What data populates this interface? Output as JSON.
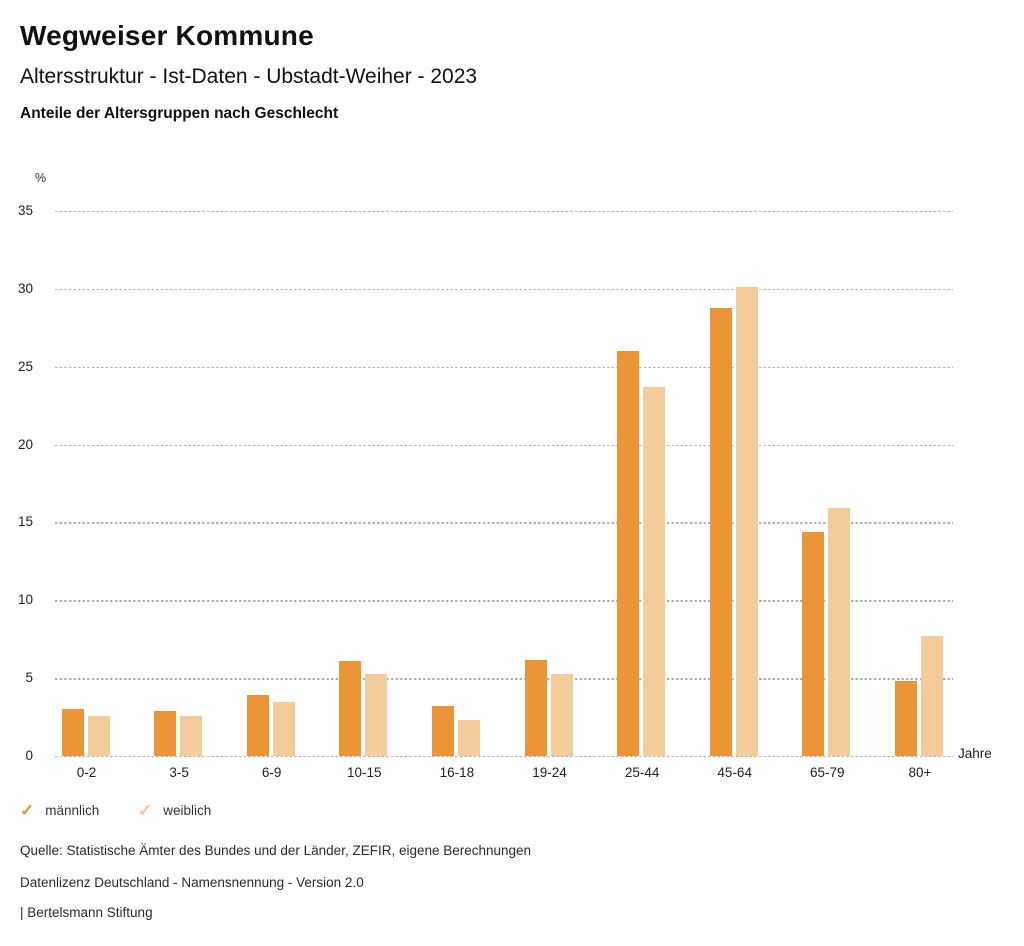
{
  "header": {
    "title": "Wegweiser Kommune",
    "subtitle": "Altersstruktur - Ist-Daten - Ubstadt-Weiher - 2023",
    "caption": "Anteile der Altersgruppen nach Geschlecht"
  },
  "chart_data": {
    "type": "bar",
    "title": "Anteile der Altersgruppen nach Geschlecht",
    "unit_label": "%",
    "x_axis_label": "Jahre",
    "categories": [
      "0-2",
      "3-5",
      "6-9",
      "10-15",
      "16-18",
      "19-24",
      "25-44",
      "45-64",
      "65-79",
      "80+"
    ],
    "series": [
      {
        "name": "männlich",
        "color": "#EC9536",
        "values": [
          3.0,
          2.9,
          3.9,
          6.1,
          3.2,
          6.2,
          26.0,
          28.8,
          14.4,
          4.8
        ]
      },
      {
        "name": "weiblich",
        "color": "#F4CC9C",
        "values": [
          2.6,
          2.6,
          3.5,
          5.3,
          2.3,
          5.3,
          23.7,
          30.1,
          15.9,
          7.7
        ]
      }
    ],
    "ylim": [
      0,
      35
    ],
    "ytick_step": 5,
    "grid": "horizontal-dotted",
    "legend_position": "bottom-left"
  },
  "legend": {
    "items": [
      {
        "label": "männlich",
        "check_color": "#E9953B"
      },
      {
        "label": "weiblich",
        "check_color": "#F2C691"
      }
    ]
  },
  "footer": {
    "source": "Quelle: Statistische Ämter des Bundes und der Länder, ZEFIR, eigene Berechnungen",
    "license": "Datenlizenz Deutschland - Namensnennung - Version 2.0",
    "attribution": "| Bertelsmann Stiftung"
  }
}
